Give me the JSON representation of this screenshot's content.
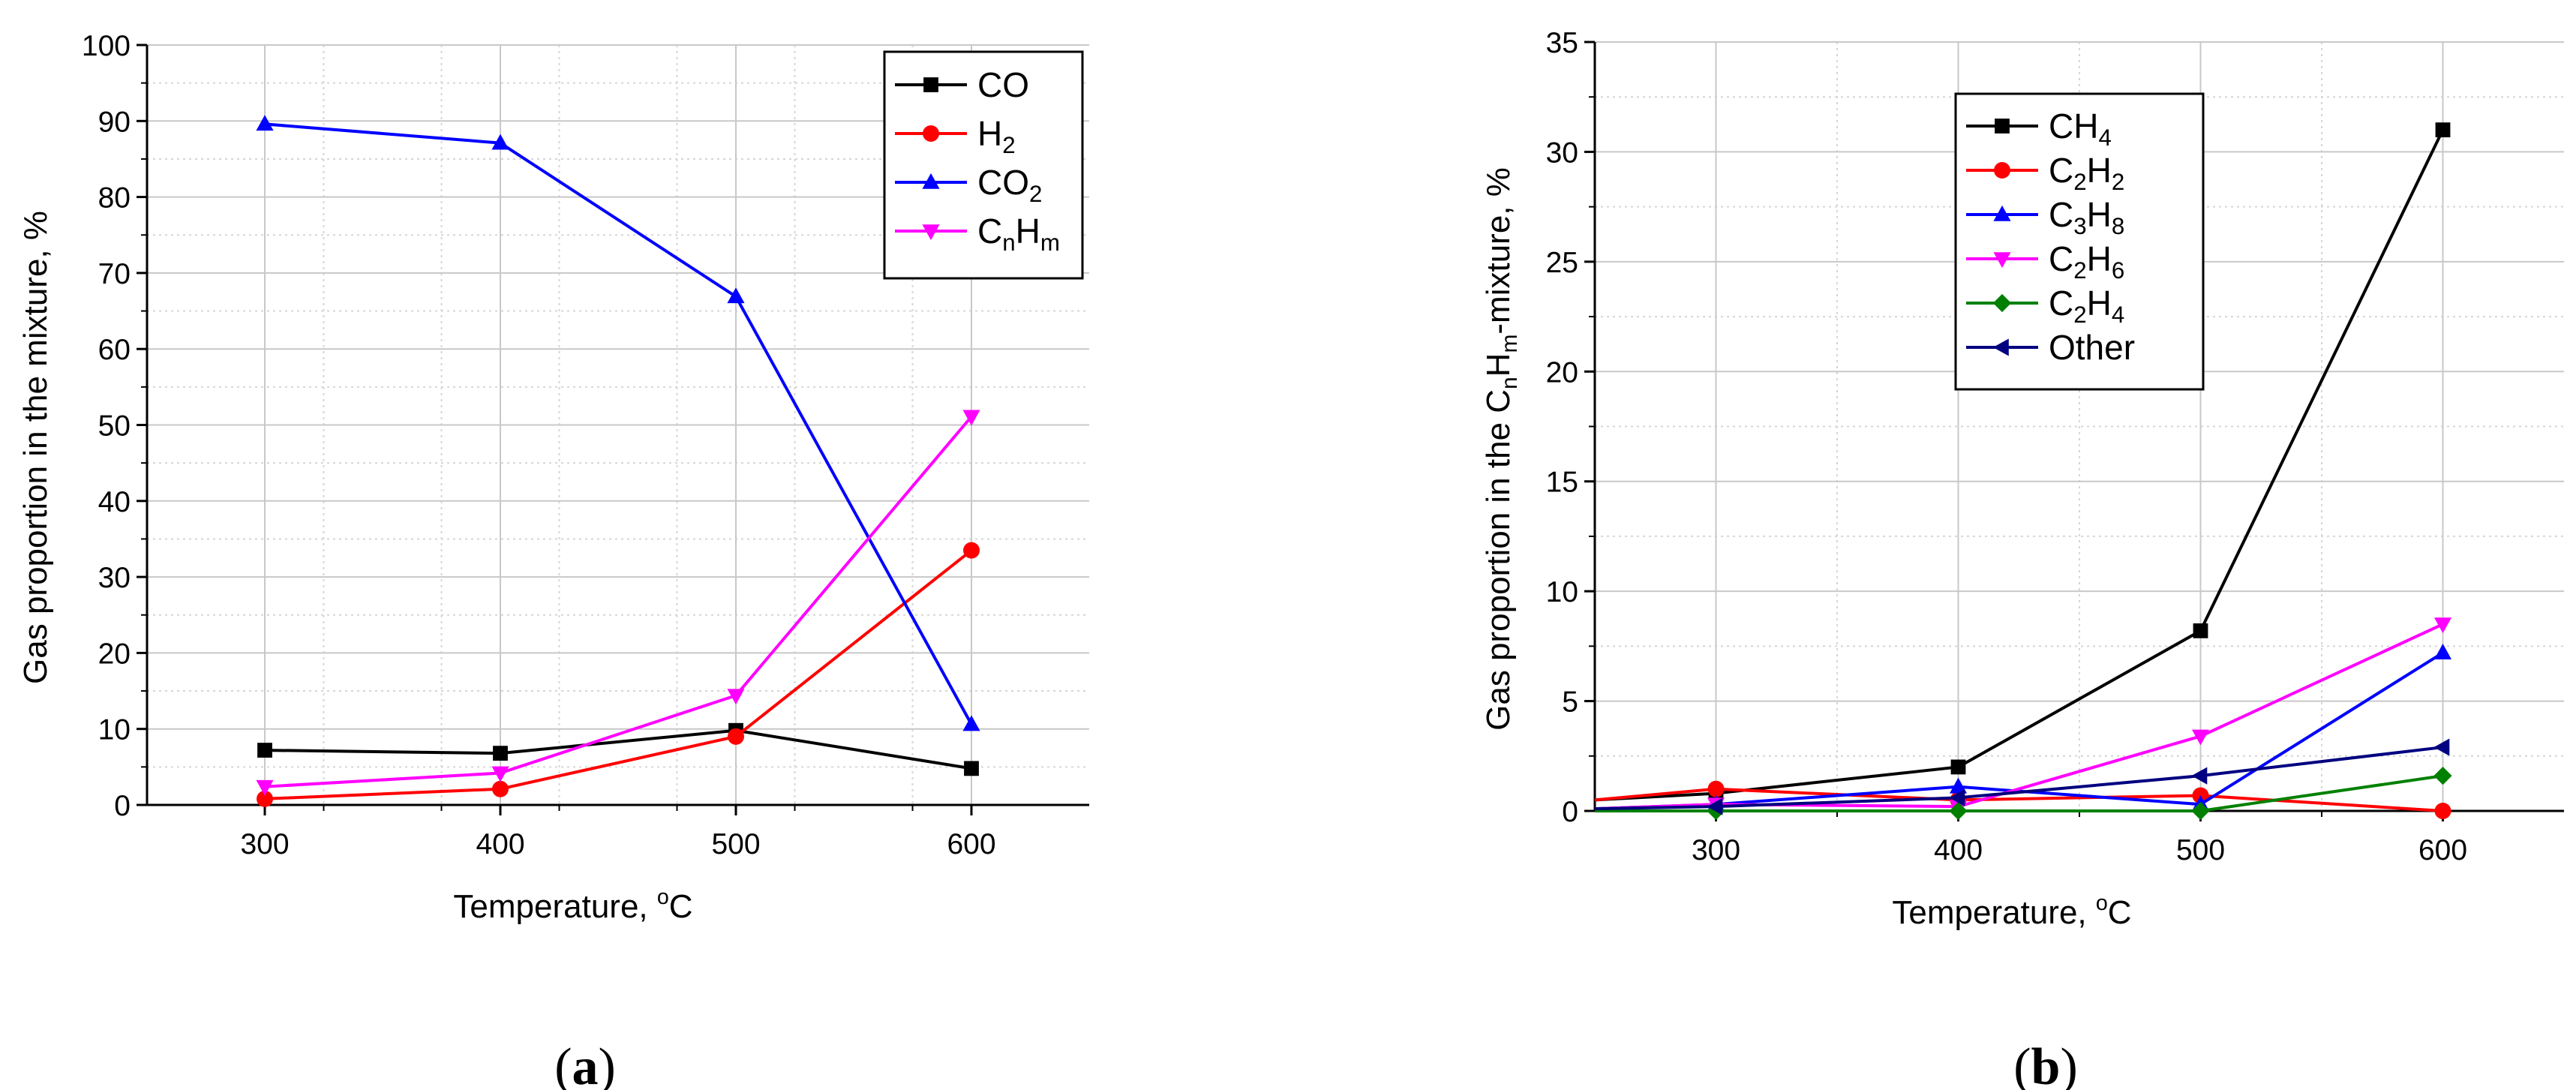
{
  "colors": {
    "CO": "#000000",
    "H2": "#ff0000",
    "CO2": "#0000ff",
    "CnHm": "#ff00ff",
    "CH4": "#000000",
    "C2H2": "#ff0000",
    "C3H8": "#0000ff",
    "C2H6": "#ff00ff",
    "C2H4": "#008000",
    "Other": "#000080"
  },
  "chart_data": [
    {
      "type": "line",
      "panel_label": {
        "open": "(",
        "letter": "a",
        "close": ")"
      },
      "xlabel": "Temperature, ",
      "xlabel_sup": "o",
      "xlabel_end": "C",
      "ylabel": "Gas proportion in the mixture, %",
      "xlim": [
        250,
        650
      ],
      "ylim": [
        0,
        100
      ],
      "xticks": [
        300,
        400,
        500,
        600
      ],
      "yticks": [
        0,
        10,
        20,
        30,
        40,
        50,
        60,
        70,
        80,
        90,
        100
      ],
      "legend_position": "top-right",
      "series": [
        {
          "id": "CO",
          "name": "CO",
          "label_parts": [
            [
              "CO",
              "n"
            ]
          ],
          "marker": "square",
          "x": [
            300,
            400,
            500,
            600
          ],
          "y": [
            7.2,
            6.8,
            9.8,
            4.8
          ]
        },
        {
          "id": "H2",
          "name": "H2",
          "label_parts": [
            [
              "H",
              "n"
            ],
            [
              "2",
              "sub"
            ]
          ],
          "marker": "circle",
          "x": [
            300,
            400,
            500,
            600
          ],
          "y": [
            0.8,
            2.1,
            9.0,
            33.5
          ]
        },
        {
          "id": "CO2",
          "name": "CO2",
          "label_parts": [
            [
              "CO",
              "n"
            ],
            [
              "2",
              "sub"
            ]
          ],
          "marker": "triangle-up",
          "x": [
            300,
            400,
            500,
            600
          ],
          "y": [
            89.6,
            87.1,
            66.9,
            10.6
          ]
        },
        {
          "id": "CnHm",
          "name": "CnHm",
          "label_parts": [
            [
              "C",
              "n"
            ],
            [
              "n",
              "sub"
            ],
            [
              "H",
              "n"
            ],
            [
              "m",
              "sub"
            ]
          ],
          "marker": "triangle-down",
          "x": [
            300,
            400,
            500,
            600
          ],
          "y": [
            2.4,
            4.2,
            14.4,
            51.1
          ]
        }
      ]
    },
    {
      "type": "line",
      "panel_label": {
        "open": "(",
        "letter": "b",
        "close": ")"
      },
      "xlabel": "Temperature, ",
      "xlabel_sup": "o",
      "xlabel_end": "C",
      "ylabel_parts": [
        [
          "Gas proportion in the C",
          "n"
        ],
        [
          "n",
          "sub"
        ],
        [
          "H",
          "n"
        ],
        [
          "m",
          "sub"
        ],
        [
          "-mixture, %",
          "n"
        ]
      ],
      "xlim": [
        250,
        650
      ],
      "ylim": [
        0,
        35
      ],
      "xticks": [
        300,
        400,
        500,
        600
      ],
      "yticks": [
        0,
        5,
        10,
        15,
        20,
        25,
        30,
        35
      ],
      "legend_position": "top-center",
      "series": [
        {
          "id": "CH4",
          "name": "CH4",
          "label_parts": [
            [
              "CH",
              "n"
            ],
            [
              "4",
              "sub"
            ]
          ],
          "marker": "square",
          "x": [
            250,
            300,
            400,
            500,
            600
          ],
          "y": [
            0.5,
            0.8,
            2.0,
            8.2,
            31.0
          ]
        },
        {
          "id": "C2H2",
          "name": "C2H2",
          "label_parts": [
            [
              "C",
              "n"
            ],
            [
              "2",
              "sub"
            ],
            [
              "H",
              "n"
            ],
            [
              "2",
              "sub"
            ]
          ],
          "marker": "circle",
          "x": [
            250,
            300,
            400,
            500,
            600
          ],
          "y": [
            0.5,
            1.0,
            0.5,
            0.7,
            0.0
          ]
        },
        {
          "id": "C3H8",
          "name": "C3H8",
          "label_parts": [
            [
              "C",
              "n"
            ],
            [
              "3",
              "sub"
            ],
            [
              "H",
              "n"
            ],
            [
              "8",
              "sub"
            ]
          ],
          "marker": "triangle-up",
          "x": [
            250,
            300,
            400,
            500,
            600
          ],
          "y": [
            0.1,
            0.3,
            1.1,
            0.3,
            7.2
          ]
        },
        {
          "id": "C2H6",
          "name": "C2H6",
          "label_parts": [
            [
              "C",
              "n"
            ],
            [
              "2",
              "sub"
            ],
            [
              "H",
              "n"
            ],
            [
              "6",
              "sub"
            ]
          ],
          "marker": "triangle-down",
          "x": [
            250,
            300,
            400,
            500,
            600
          ],
          "y": [
            0.1,
            0.3,
            0.2,
            3.4,
            8.5
          ]
        },
        {
          "id": "C2H4",
          "name": "C2H4",
          "label_parts": [
            [
              "C",
              "n"
            ],
            [
              "2",
              "sub"
            ],
            [
              "H",
              "n"
            ],
            [
              "4",
              "sub"
            ]
          ],
          "marker": "diamond",
          "x": [
            250,
            300,
            400,
            500,
            600
          ],
          "y": [
            0.0,
            0.0,
            0.0,
            0.0,
            1.6
          ]
        },
        {
          "id": "Other",
          "name": "Other",
          "label_parts": [
            [
              "Other",
              "n"
            ]
          ],
          "marker": "triangle-left",
          "x": [
            250,
            300,
            400,
            500,
            600
          ],
          "y": [
            0.1,
            0.2,
            0.6,
            1.6,
            2.9
          ]
        }
      ]
    }
  ]
}
